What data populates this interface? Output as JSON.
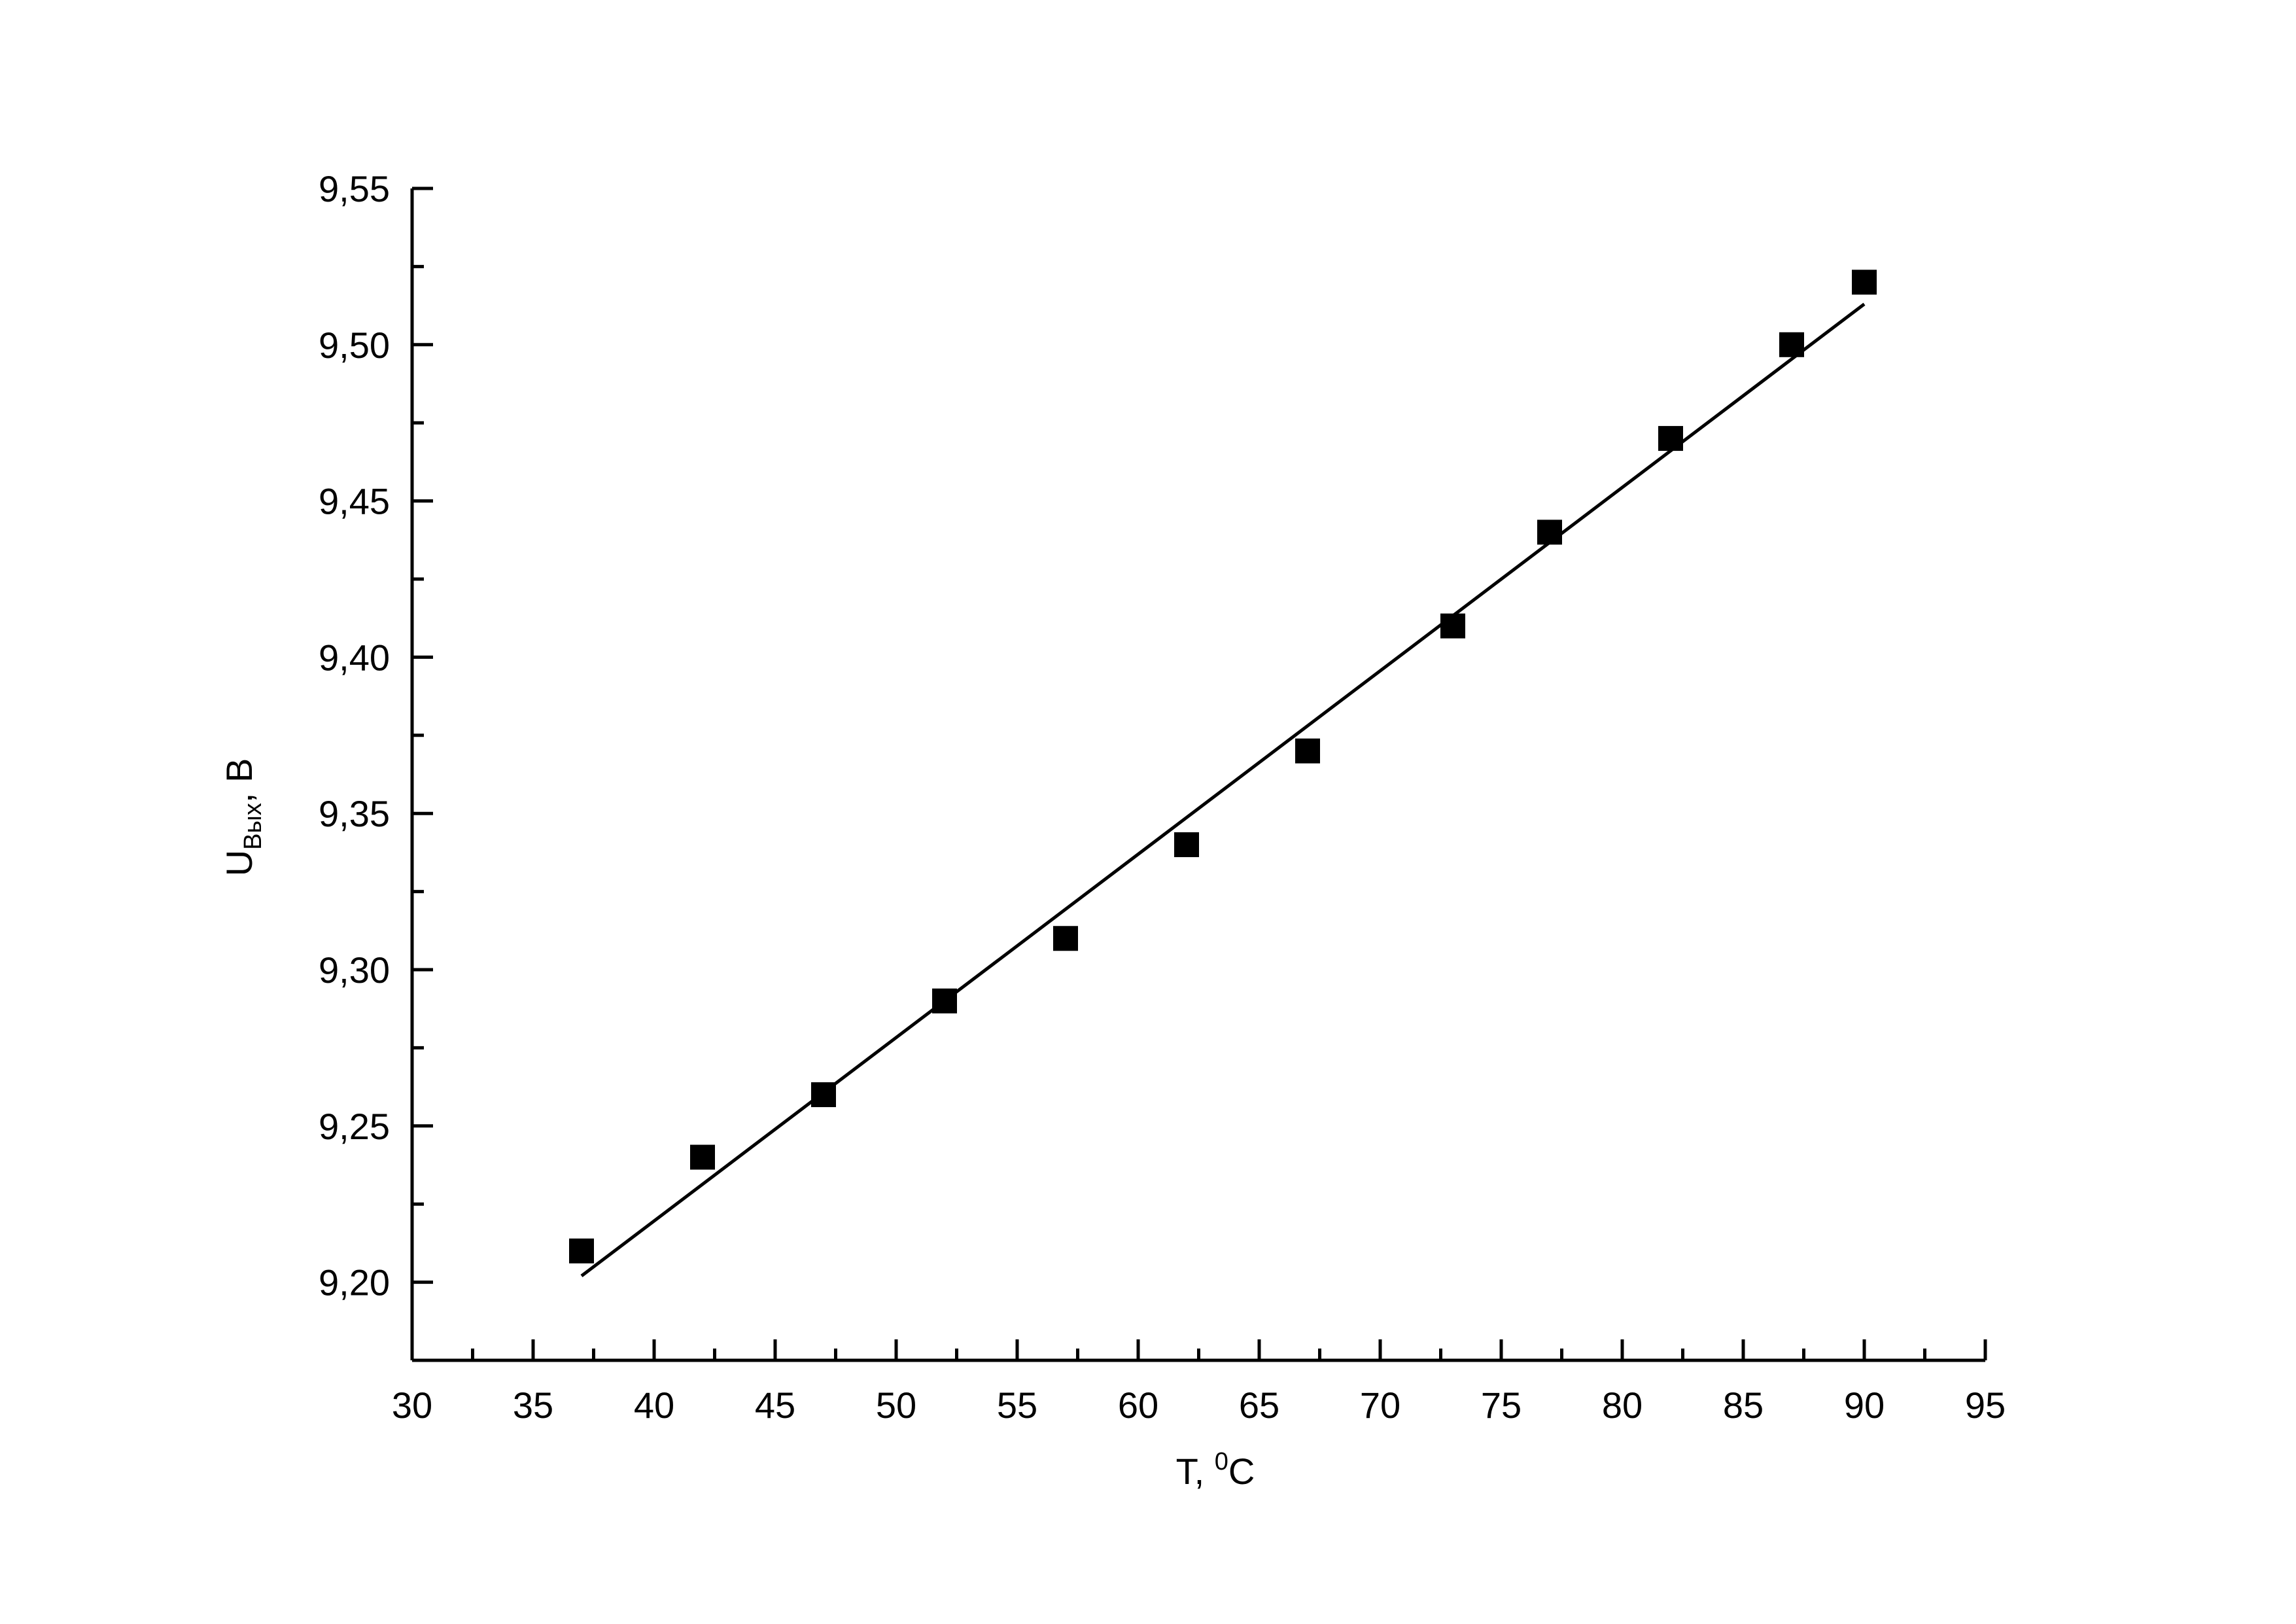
{
  "chart_data": {
    "type": "scatter",
    "xlabel": {
      "main": "T, ",
      "sup": "0",
      "rest": "C"
    },
    "ylabel": {
      "main": "U",
      "sub": "Вых",
      "rest": ", В"
    },
    "color": "#000000",
    "x": [
      37,
      42,
      47,
      52,
      57,
      62,
      67,
      73,
      77,
      82,
      87,
      90
    ],
    "values": [
      9.21,
      9.24,
      9.26,
      9.29,
      9.31,
      9.34,
      9.37,
      9.41,
      9.44,
      9.47,
      9.5,
      9.52
    ],
    "fit_line": {
      "x": [
        37,
        90
      ],
      "values": [
        9.202,
        9.513
      ]
    },
    "xlim": [
      30,
      95
    ],
    "ylim": [
      9.175,
      9.55
    ],
    "xticks": [
      30,
      35,
      40,
      45,
      50,
      55,
      60,
      65,
      70,
      75,
      80,
      85,
      90,
      95
    ],
    "xminorticks": [
      32.5,
      37.5,
      42.5,
      47.5,
      52.5,
      57.5,
      62.5,
      67.5,
      72.5,
      77.5,
      82.5,
      87.5,
      92.5
    ],
    "yticks": [
      {
        "value": 9.2,
        "label": "9,20"
      },
      {
        "value": 9.25,
        "label": "9,25"
      },
      {
        "value": 9.3,
        "label": "9,30"
      },
      {
        "value": 9.35,
        "label": "9,35"
      },
      {
        "value": 9.4,
        "label": "9,40"
      },
      {
        "value": 9.45,
        "label": "9,45"
      },
      {
        "value": 9.5,
        "label": "9,50"
      },
      {
        "value": 9.55,
        "label": "9,55"
      }
    ],
    "yminorticks": [
      9.225,
      9.275,
      9.325,
      9.375,
      9.425,
      9.475,
      9.525
    ]
  }
}
